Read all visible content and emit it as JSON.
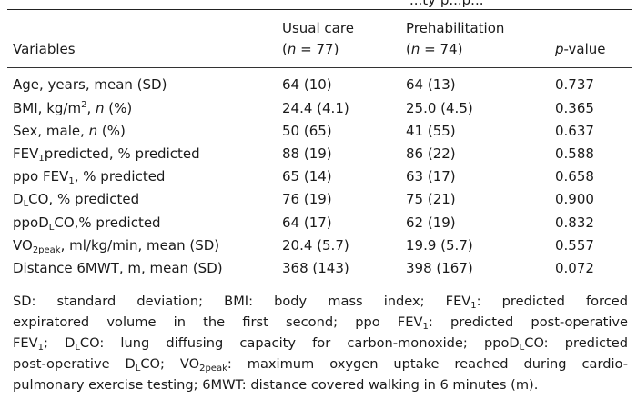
{
  "table": {
    "top_fragment": "...ty p...p...",
    "header": {
      "variables": "Variables",
      "usual_care": "Usual care",
      "usual_care_n": "(n = 77)",
      "prehab": "Prehabilitation",
      "prehab_n": "(n = 74)",
      "pvalue": "p-value"
    },
    "rows": [
      {
        "label": "Age, years, mean (SD)",
        "usual": "64 (10)",
        "prehab": "64 (13)",
        "p": "0.737"
      },
      {
        "label": "BMI, kg/m², n (%)",
        "usual": "24.4 (4.1)",
        "prehab": "25.0 (4.5)",
        "p": "0.365"
      },
      {
        "label": "Sex, male, n (%)",
        "usual": "50 (65)",
        "prehab": "41 (55)",
        "p": "0.637"
      },
      {
        "label": "FEV1predicted, % predicted",
        "usual": "88 (19)",
        "prehab": "86 (22)",
        "p": "0.588"
      },
      {
        "label": "ppo FEV1, % predicted",
        "usual": "65 (14)",
        "prehab": "63 (17)",
        "p": "0.658"
      },
      {
        "label": "DLCO, % predicted",
        "usual": "76 (19)",
        "prehab": "75 (21)",
        "p": "0.900"
      },
      {
        "label": "ppoDLCO,% predicted",
        "usual": "64 (17)",
        "prehab": "62 (19)",
        "p": "0.832"
      },
      {
        "label": "VO2peak, ml/kg/min, mean (SD)",
        "usual": "20.4 (5.7)",
        "prehab": "19.9 (5.7)",
        "p": "0.557"
      },
      {
        "label": "Distance 6MWT, m, mean (SD)",
        "usual": "368 (143)",
        "prehab": "398 (167)",
        "p": "0.072"
      }
    ],
    "footnote": [
      "SD: standard deviation; BMI: body mass index; FEV1: predicted forced",
      "expiratored volume in the first second; ppo FEV1: predicted post-operative",
      "FEV1; DLCO: lung diffusing capacity for carbon-monoxide; ppoDLCO: predicted",
      "post-operative DLCO; VO2peak: maximum oxygen uptake reached during cardio-",
      "pulmonary exercise testing; 6MWT: distance covered walking in 6 minutes (m)."
    ]
  }
}
